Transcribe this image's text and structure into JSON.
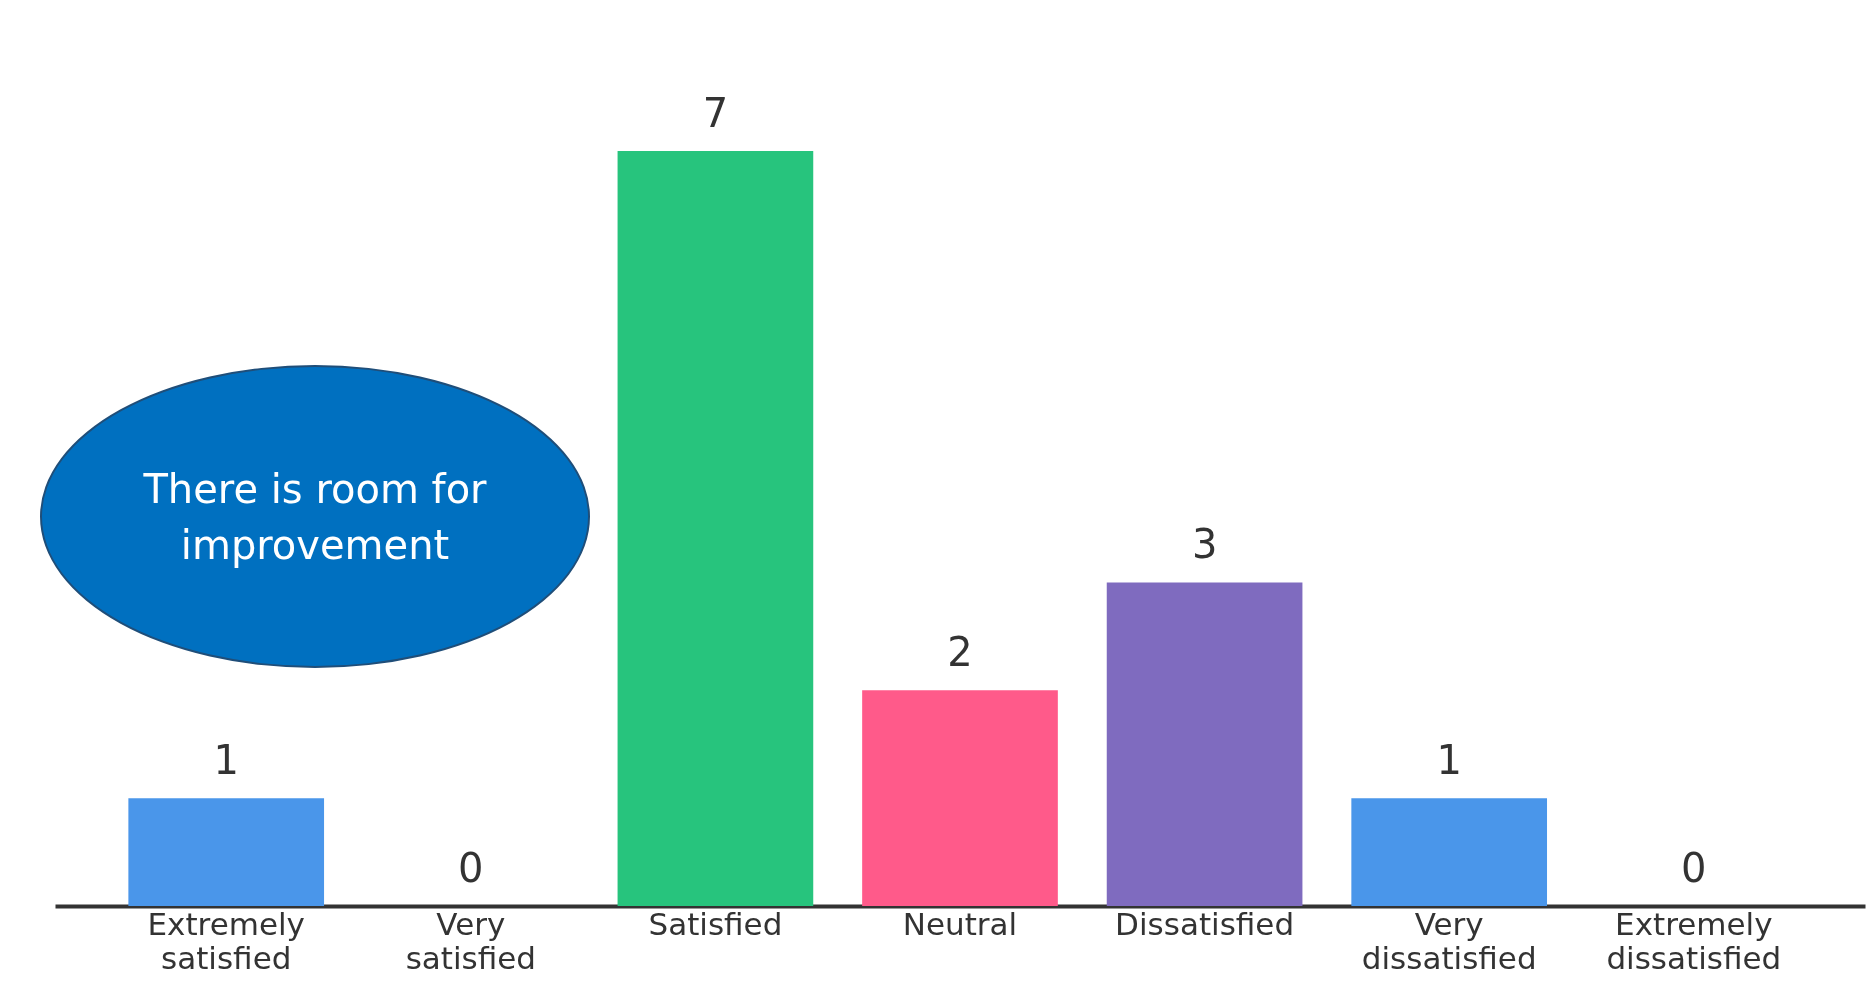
{
  "chart_data": {
    "type": "bar",
    "categories": [
      "Extremely satisfied",
      "Very satisfied",
      "Satisfied",
      "Neutral",
      "Dissatisfied",
      "Very dissatisfied",
      "Extremely dissatisfied"
    ],
    "values": [
      1,
      0,
      7,
      2,
      3,
      1,
      0
    ],
    "colors": [
      "#4a96ea",
      "#4a96ea",
      "#27c47d",
      "#ff5a8a",
      "#7f6bbf",
      "#4a96ea",
      "#4a96ea"
    ],
    "data_labels": true,
    "annotations": [
      "There is room for improvement"
    ]
  }
}
